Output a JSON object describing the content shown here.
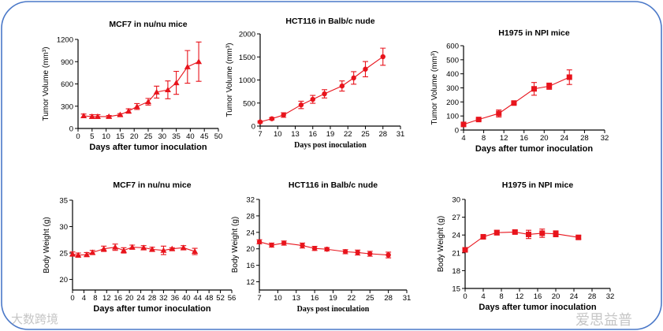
{
  "colors": {
    "series": "#e8141c",
    "frame": "#4a78c8",
    "axis": "#000000"
  },
  "watermarks": [
    "大数跨境",
    "爱思益普"
  ],
  "chart_data": [
    {
      "type": "line",
      "title": "MCF7 in nu/nu mice",
      "xlabel": "Days after tumor inoculation",
      "ylabel": "Tumor Volume (mm³)",
      "marker": "triangle",
      "xlim": [
        0,
        50
      ],
      "ylim": [
        0,
        1200
      ],
      "xticks": [
        0,
        5,
        10,
        15,
        20,
        25,
        30,
        35,
        40,
        45,
        50
      ],
      "yticks": [
        0,
        300,
        600,
        900,
        1200
      ],
      "x": [
        2,
        5,
        7,
        11,
        15,
        18,
        21,
        25,
        28,
        32,
        35,
        39,
        43
      ],
      "y": [
        170,
        160,
        160,
        160,
        185,
        235,
        295,
        360,
        490,
        520,
        615,
        830,
        900
      ],
      "err": [
        25,
        25,
        25,
        15,
        15,
        30,
        40,
        45,
        80,
        120,
        155,
        220,
        265
      ]
    },
    {
      "type": "line",
      "title": "HCT116 in Balb/c nude",
      "xlabel": "Days post inoculation",
      "ylabel": "Tumor Volume (mm³)",
      "marker": "circle",
      "xlim": [
        7,
        31
      ],
      "ylim": [
        0,
        2000
      ],
      "xticks": [
        7,
        10,
        13,
        16,
        19,
        22,
        25,
        28,
        31
      ],
      "yticks": [
        0,
        500,
        1000,
        1500,
        2000
      ],
      "x": [
        7,
        9,
        11,
        14,
        16,
        18,
        21,
        23,
        25,
        28
      ],
      "y": [
        90,
        160,
        240,
        460,
        580,
        700,
        870,
        1045,
        1235,
        1505
      ],
      "err": [
        20,
        25,
        50,
        80,
        85,
        90,
        110,
        135,
        165,
        185
      ]
    },
    {
      "type": "line",
      "title": "H1975 in NPI mice",
      "xlabel": "Days after tumor inoculation",
      "ylabel": "Tumor Volume (mm³)",
      "marker": "square",
      "xlim": [
        4,
        32
      ],
      "ylim": [
        0,
        600
      ],
      "xticks": [
        4,
        8,
        12,
        16,
        20,
        24,
        28,
        32
      ],
      "yticks": [
        0,
        100,
        200,
        300,
        400,
        500,
        600
      ],
      "x": [
        4,
        7,
        11,
        14,
        18,
        21,
        25
      ],
      "y": [
        40,
        75,
        118,
        192,
        293,
        312,
        376
      ],
      "err": [
        5,
        5,
        25,
        8,
        45,
        22,
        52
      ]
    },
    {
      "type": "line",
      "title": "MCF7 in nu/nu mice",
      "xlabel": "Days after tumor inoculation",
      "ylabel": "Body Weight (g)",
      "marker": "triangle",
      "xlim": [
        0,
        56
      ],
      "ylim": [
        18,
        35
      ],
      "xticks": [
        0,
        4,
        8,
        12,
        16,
        20,
        24,
        28,
        32,
        36,
        40,
        44,
        48,
        52,
        56
      ],
      "yticks": [
        20,
        25,
        30,
        35
      ],
      "x": [
        0,
        2,
        5,
        7,
        11,
        15,
        18,
        21,
        25,
        28,
        32,
        35,
        39,
        43
      ],
      "y": [
        24.8,
        24.6,
        24.7,
        25.1,
        25.8,
        26.1,
        25.5,
        26.1,
        26.0,
        25.7,
        25.5,
        25.8,
        26.0,
        25.3
      ],
      "err": [
        0.4,
        0.4,
        0.4,
        0.4,
        0.5,
        0.6,
        0.5,
        0.4,
        0.4,
        0.4,
        0.8,
        0.2,
        0.4,
        0.6
      ]
    },
    {
      "type": "line",
      "title": "HCT116 in Balb/c nude",
      "xlabel": "Days post inoculation",
      "ylabel": "Body Weight (g)",
      "marker": "circle",
      "xlim": [
        7,
        31
      ],
      "ylim": [
        10,
        32
      ],
      "xticks": [
        7,
        10,
        13,
        16,
        19,
        22,
        25,
        28,
        31
      ],
      "yticks": [
        12,
        16,
        20,
        24,
        28,
        32
      ],
      "x": [
        7,
        9,
        11,
        14,
        16,
        18,
        21,
        23,
        25,
        28
      ],
      "y": [
        21.7,
        20.9,
        21.4,
        20.8,
        20.1,
        19.9,
        19.3,
        19.1,
        18.8,
        18.5
      ],
      "err": [
        0.5,
        0.5,
        0.5,
        0.6,
        0.5,
        0.4,
        0.5,
        0.6,
        0.6,
        0.7
      ]
    },
    {
      "type": "line",
      "title": "H1975 in NPI mice",
      "xlabel": "Days after tumor inoculation",
      "ylabel": "Body Weight (g)",
      "marker": "square",
      "xlim": [
        0,
        32
      ],
      "ylim": [
        15,
        30
      ],
      "xticks": [
        0,
        4,
        8,
        12,
        16,
        20,
        24,
        28,
        32
      ],
      "yticks": [
        15,
        18,
        21,
        24,
        27,
        30
      ],
      "x": [
        0,
        4,
        7,
        11,
        14,
        17,
        20,
        25
      ],
      "y": [
        21.5,
        23.7,
        24.4,
        24.5,
        24.1,
        24.3,
        24.2,
        23.6
      ],
      "err": [
        0.3,
        0.2,
        0.4,
        0.3,
        0.7,
        0.7,
        0.5,
        0.3
      ]
    }
  ]
}
